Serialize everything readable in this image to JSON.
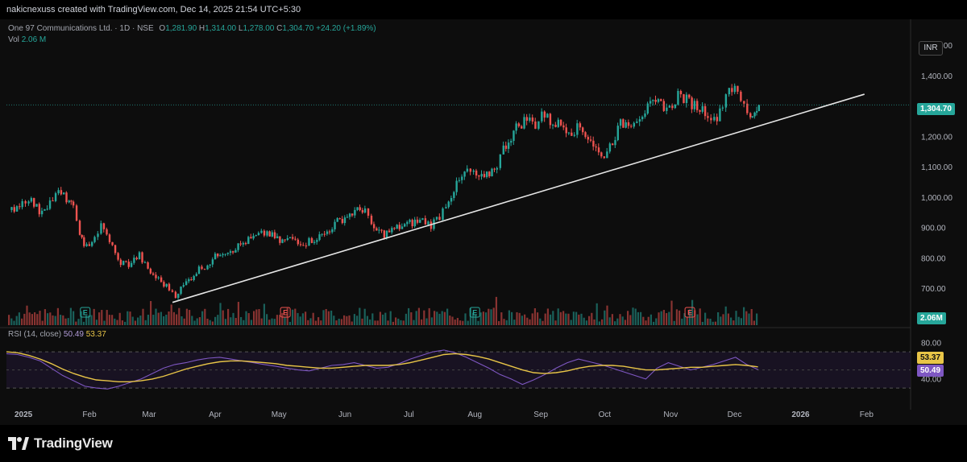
{
  "header": {
    "credit": "nakicnexuss created with TradingView.com, Dec 14, 2025 21:54 UTC+5:30"
  },
  "legend": {
    "symbol": "One 97 Communications Ltd. · 1D · NSE",
    "o_label": "O",
    "o_value": "1,281.90",
    "h_label": "H",
    "h_value": "1,314.00",
    "l_label": "L",
    "l_value": "1,278.00",
    "c_label": "C",
    "c_value": "1,304.70",
    "change": "+24.20 (+1.89%)",
    "vol_label": "Vol",
    "vol_value": "2.06 M",
    "rsi_label": "RSI (14, close)",
    "rsi_value": "50.49",
    "rsi_ma_value": "53.37"
  },
  "currency": "INR",
  "tags": {
    "last_price": "1,304.70",
    "volume": "2.06M",
    "rsi_ma": "53.37",
    "rsi": "50.49"
  },
  "footer": {
    "brand": "TradingView"
  },
  "colors": {
    "up": "#26a69a",
    "down": "#ef5350",
    "rsi": "#7e57c2",
    "rsi_ma": "#e8c547",
    "trendline": "#e6e6e6"
  },
  "chart_data": {
    "type": "candlestick",
    "price_axis": {
      "ticks": [
        "1,500.00",
        "1,400.00",
        "1,300.00",
        "1,200.00",
        "1,100.00",
        "1,000.00",
        "900.00",
        "800.00",
        "700.00",
        "600.00"
      ],
      "range": [
        580,
        1560
      ]
    },
    "x_labels": [
      "2025",
      "Feb",
      "Mar",
      "Apr",
      "May",
      "Jun",
      "Jul",
      "Aug",
      "Sep",
      "Oct",
      "Nov",
      "Dec",
      "2026",
      "Feb"
    ],
    "rsi_axis": {
      "ticks": [
        "80.00",
        "40.00"
      ],
      "range": [
        15,
        95
      ],
      "band": [
        30,
        70
      ]
    },
    "earnings_markers": [
      "E",
      "E",
      "E",
      "E"
    ],
    "close_series": [
      {
        "d": "2024-12-26",
        "c": 960
      },
      {
        "d": "2024-12-31",
        "c": 985
      },
      {
        "d": "2025-01-03",
        "c": 1000
      },
      {
        "d": "2025-01-08",
        "c": 955
      },
      {
        "d": "2025-01-13",
        "c": 985
      },
      {
        "d": "2025-01-17",
        "c": 1015
      },
      {
        "d": "2025-01-22",
        "c": 990
      },
      {
        "d": "2025-01-24",
        "c": 960
      },
      {
        "d": "2025-01-27",
        "c": 890
      },
      {
        "d": "2025-01-29",
        "c": 830
      },
      {
        "d": "2025-02-03",
        "c": 870
      },
      {
        "d": "2025-02-06",
        "c": 905
      },
      {
        "d": "2025-02-10",
        "c": 860
      },
      {
        "d": "2025-02-14",
        "c": 790
      },
      {
        "d": "2025-02-19",
        "c": 780
      },
      {
        "d": "2025-02-24",
        "c": 810
      },
      {
        "d": "2025-02-28",
        "c": 760
      },
      {
        "d": "2025-03-05",
        "c": 730
      },
      {
        "d": "2025-03-10",
        "c": 700
      },
      {
        "d": "2025-03-13",
        "c": 680
      },
      {
        "d": "2025-03-18",
        "c": 720
      },
      {
        "d": "2025-03-24",
        "c": 765
      },
      {
        "d": "2025-03-28",
        "c": 780
      },
      {
        "d": "2025-04-03",
        "c": 820
      },
      {
        "d": "2025-04-09",
        "c": 830
      },
      {
        "d": "2025-04-15",
        "c": 855
      },
      {
        "d": "2025-04-21",
        "c": 875
      },
      {
        "d": "2025-04-25",
        "c": 885
      },
      {
        "d": "2025-05-01",
        "c": 855
      },
      {
        "d": "2025-05-07",
        "c": 865
      },
      {
        "d": "2025-05-12",
        "c": 850
      },
      {
        "d": "2025-05-16",
        "c": 860
      },
      {
        "d": "2025-05-22",
        "c": 880
      },
      {
        "d": "2025-05-28",
        "c": 920
      },
      {
        "d": "2025-06-04",
        "c": 950
      },
      {
        "d": "2025-06-10",
        "c": 965
      },
      {
        "d": "2025-06-13",
        "c": 900
      },
      {
        "d": "2025-06-19",
        "c": 880
      },
      {
        "d": "2025-06-25",
        "c": 900
      },
      {
        "d": "2025-07-01",
        "c": 915
      },
      {
        "d": "2025-07-07",
        "c": 925
      },
      {
        "d": "2025-07-11",
        "c": 910
      },
      {
        "d": "2025-07-15",
        "c": 940
      },
      {
        "d": "2025-07-18",
        "c": 980
      },
      {
        "d": "2025-07-23",
        "c": 1040
      },
      {
        "d": "2025-07-28",
        "c": 1090
      },
      {
        "d": "2025-07-31",
        "c": 1075
      },
      {
        "d": "2025-08-05",
        "c": 1060
      },
      {
        "d": "2025-08-11",
        "c": 1110
      },
      {
        "d": "2025-08-14",
        "c": 1160
      },
      {
        "d": "2025-08-20",
        "c": 1230
      },
      {
        "d": "2025-08-25",
        "c": 1260
      },
      {
        "d": "2025-08-29",
        "c": 1240
      },
      {
        "d": "2025-09-01",
        "c": 1280
      },
      {
        "d": "2025-09-05",
        "c": 1250
      },
      {
        "d": "2025-09-10",
        "c": 1240
      },
      {
        "d": "2025-09-15",
        "c": 1220
      },
      {
        "d": "2025-09-19",
        "c": 1230
      },
      {
        "d": "2025-09-24",
        "c": 1190
      },
      {
        "d": "2025-09-29",
        "c": 1130
      },
      {
        "d": "2025-10-03",
        "c": 1170
      },
      {
        "d": "2025-10-08",
        "c": 1240
      },
      {
        "d": "2025-10-13",
        "c": 1250
      },
      {
        "d": "2025-10-17",
        "c": 1270
      },
      {
        "d": "2025-10-22",
        "c": 1300
      },
      {
        "d": "2025-10-27",
        "c": 1310
      },
      {
        "d": "2025-10-31",
        "c": 1290
      },
      {
        "d": "2025-11-04",
        "c": 1340
      },
      {
        "d": "2025-11-08",
        "c": 1320
      },
      {
        "d": "2025-11-13",
        "c": 1300
      },
      {
        "d": "2025-11-18",
        "c": 1280
      },
      {
        "d": "2025-11-21",
        "c": 1250
      },
      {
        "d": "2025-11-25",
        "c": 1310
      },
      {
        "d": "2025-11-28",
        "c": 1370
      },
      {
        "d": "2025-12-02",
        "c": 1340
      },
      {
        "d": "2025-12-05",
        "c": 1300
      },
      {
        "d": "2025-12-08",
        "c": 1270
      },
      {
        "d": "2025-12-10",
        "c": 1280
      },
      {
        "d": "2025-12-12",
        "c": 1304.7
      }
    ],
    "trendline": [
      {
        "d": "2025-03-12",
        "v": 655
      },
      {
        "d": "2026-01-31",
        "v": 1340
      }
    ],
    "rsi_series": [
      68,
      67,
      64,
      60,
      52,
      44,
      38,
      32,
      30,
      29,
      32,
      36,
      40,
      46,
      52,
      56,
      58,
      61,
      63,
      64,
      62,
      60,
      58,
      56,
      54,
      52,
      50,
      49,
      52,
      55,
      56,
      58,
      55,
      52,
      53,
      57,
      62,
      66,
      70,
      72,
      69,
      64,
      58,
      52,
      45,
      40,
      34,
      39,
      45,
      52,
      58,
      62,
      59,
      56,
      52,
      48,
      44,
      40,
      52,
      58,
      54,
      50,
      53,
      56,
      60,
      64,
      56,
      50.49
    ],
    "rsi_ma_series": [
      70,
      69,
      66,
      62,
      57,
      51,
      46,
      42,
      39,
      38,
      37,
      37,
      38,
      40,
      43,
      47,
      51,
      54,
      57,
      59,
      60,
      60,
      59,
      58,
      57,
      55,
      54,
      53,
      52,
      52,
      53,
      54,
      55,
      55,
      55,
      56,
      58,
      61,
      64,
      67,
      68,
      67,
      65,
      62,
      58,
      54,
      50,
      47,
      46,
      47,
      49,
      52,
      54,
      55,
      55,
      54,
      52,
      50,
      50,
      51,
      52,
      53,
      53,
      54,
      55,
      56,
      55,
      53.37
    ]
  }
}
